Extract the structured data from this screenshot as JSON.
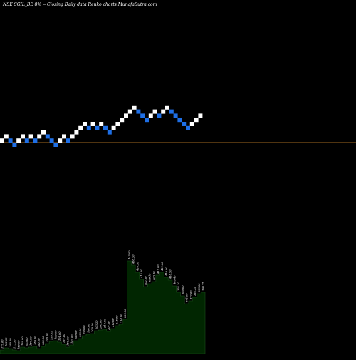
{
  "title": "NSE SGIL_BE 8% -- Closing Daily data Renko charts MunafaSutra.com",
  "colors": {
    "background": "#000000",
    "up_brick": "#ffffff",
    "down_brick": "#1e6fe6",
    "reference_line": "#a0671f",
    "volume_fill": "#012601",
    "volume_stroke": "#1b4d1b",
    "volume_label": "#ffffff"
  },
  "chart_data": [
    {
      "type": "renko",
      "title": "NSE SGIL_BE 8% -- Closing Daily data Renko charts MunafaSutra.com",
      "brick_percent": 8,
      "bricks": [
        {
          "level": 0,
          "dir": "up"
        },
        {
          "level": 1,
          "dir": "up"
        },
        {
          "level": 0,
          "dir": "down"
        },
        {
          "level": -1,
          "dir": "down"
        },
        {
          "level": 0,
          "dir": "up"
        },
        {
          "level": 1,
          "dir": "up"
        },
        {
          "level": 0,
          "dir": "down"
        },
        {
          "level": 1,
          "dir": "up"
        },
        {
          "level": 0,
          "dir": "down"
        },
        {
          "level": 1,
          "dir": "up"
        },
        {
          "level": 2,
          "dir": "up"
        },
        {
          "level": 1,
          "dir": "down"
        },
        {
          "level": 0,
          "dir": "down"
        },
        {
          "level": -1,
          "dir": "down"
        },
        {
          "level": 0,
          "dir": "up"
        },
        {
          "level": 1,
          "dir": "up"
        },
        {
          "level": 0,
          "dir": "down"
        },
        {
          "level": 1,
          "dir": "up"
        },
        {
          "level": 2,
          "dir": "up"
        },
        {
          "level": 3,
          "dir": "up"
        },
        {
          "level": 4,
          "dir": "up"
        },
        {
          "level": 3,
          "dir": "down"
        },
        {
          "level": 4,
          "dir": "up"
        },
        {
          "level": 3,
          "dir": "down"
        },
        {
          "level": 4,
          "dir": "up"
        },
        {
          "level": 3,
          "dir": "down"
        },
        {
          "level": 2,
          "dir": "down"
        },
        {
          "level": 3,
          "dir": "up"
        },
        {
          "level": 4,
          "dir": "up"
        },
        {
          "level": 5,
          "dir": "up"
        },
        {
          "level": 6,
          "dir": "up"
        },
        {
          "level": 7,
          "dir": "up"
        },
        {
          "level": 8,
          "dir": "up"
        },
        {
          "level": 7,
          "dir": "down"
        },
        {
          "level": 6,
          "dir": "down"
        },
        {
          "level": 5,
          "dir": "down"
        },
        {
          "level": 6,
          "dir": "up"
        },
        {
          "level": 7,
          "dir": "up"
        },
        {
          "level": 6,
          "dir": "down"
        },
        {
          "level": 7,
          "dir": "up"
        },
        {
          "level": 8,
          "dir": "up"
        },
        {
          "level": 7,
          "dir": "down"
        },
        {
          "level": 6,
          "dir": "down"
        },
        {
          "level": 5,
          "dir": "down"
        },
        {
          "level": 4,
          "dir": "down"
        },
        {
          "level": 3,
          "dir": "down"
        },
        {
          "level": 4,
          "dir": "up"
        },
        {
          "level": 5,
          "dir": "up"
        },
        {
          "level": 6,
          "dir": "up"
        }
      ]
    },
    {
      "type": "area",
      "labels": [
        "179.60",
        "182.00",
        "180.60",
        "175.30",
        "180.00",
        "184.00",
        "183.00",
        "187.00",
        "186.00",
        "182.10",
        "186.00",
        "190.00",
        "193.05",
        "193.00",
        "191.00",
        "187.60",
        "180.00",
        "182.00",
        "189.00",
        "193.00",
        "196.00",
        "198.00",
        "200.00",
        "203.20",
        "206.00",
        "210.00",
        "207.00",
        "212.00",
        "215.50",
        "218.00",
        "225.00",
        "445.00",
        "436.20",
        "420.50",
        "412.60",
        "402.60",
        "398.15",
        "403.50",
        "417.60",
        "422.00",
        "419.00",
        "418.50",
        "409.40",
        "392.10",
        "380.00",
        "371.90",
        "372.60",
        "384.35",
        "393.00",
        "390.75"
      ],
      "values": [
        5,
        8,
        7,
        5,
        4,
        9,
        8,
        9,
        10,
        7,
        10,
        14,
        17,
        18,
        16,
        13,
        9,
        12,
        18,
        21,
        25,
        27,
        28,
        32,
        33,
        34,
        31,
        35,
        39,
        41,
        48,
        130,
        124,
        114,
        104,
        94,
        98,
        101,
        110,
        114,
        107,
        103,
        95,
        86,
        81,
        70,
        74,
        79,
        84,
        86
      ]
    }
  ]
}
